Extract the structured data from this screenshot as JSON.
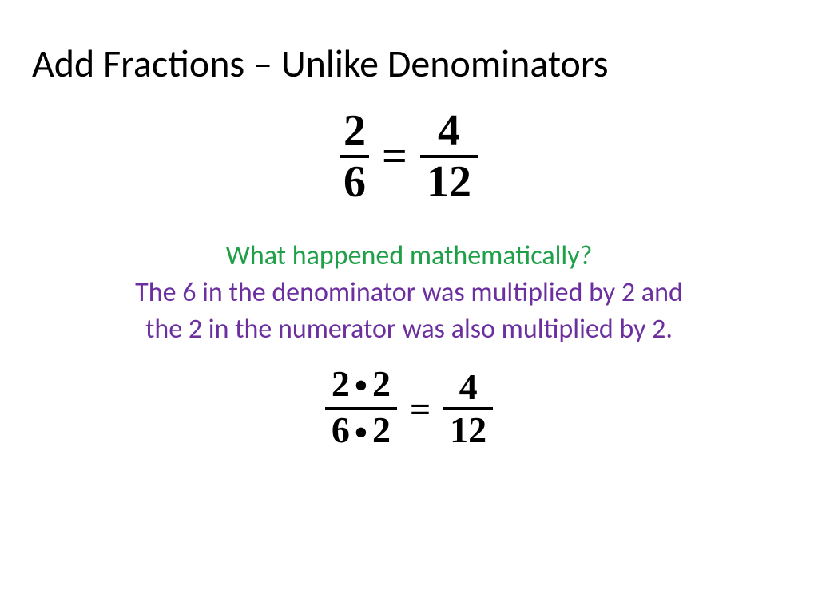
{
  "title": "Add Fractions – Unlike Denominators",
  "equation1": {
    "left_num": "2",
    "left_den": "6",
    "right_num": "4",
    "right_den": "12",
    "equals": "=",
    "font_size": 56,
    "bar_thickness": 4,
    "color": "#000000"
  },
  "explanation": {
    "question": "What happened mathematically?",
    "question_color": "#1fa048",
    "answer_line1": "The 6 in the denominator was multiplied by 2 and",
    "answer_line2": "the 2 in the numerator was also multiplied by 2.",
    "answer_color": "#6b2fa0",
    "font_size": 34
  },
  "equation2": {
    "left_num_a": "2",
    "left_num_b": "2",
    "left_den_a": "6",
    "left_den_b": "2",
    "right_num": "4",
    "right_den": "12",
    "equals": "=",
    "dot": "•",
    "font_size": 46,
    "bar_thickness": 4,
    "color": "#000000"
  },
  "background_color": "#ffffff",
  "title_color": "#000000",
  "title_font_size": 48
}
